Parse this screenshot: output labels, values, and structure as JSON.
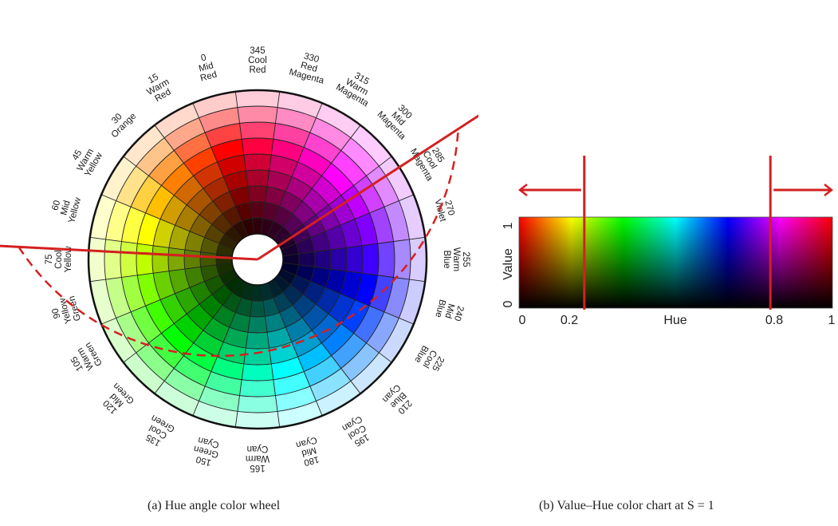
{
  "wheel": {
    "labels": [
      {
        "deg": "0",
        "lines": [
          "0",
          "Mid",
          "Red"
        ]
      },
      {
        "deg": "15",
        "lines": [
          "15",
          "Warm",
          "Red"
        ]
      },
      {
        "deg": "30",
        "lines": [
          "30",
          "Orange"
        ]
      },
      {
        "deg": "45",
        "lines": [
          "45",
          "Warm",
          "Yellow"
        ]
      },
      {
        "deg": "60",
        "lines": [
          "60",
          "Mid",
          "Yellow"
        ]
      },
      {
        "deg": "75",
        "lines": [
          "75",
          "Cool",
          "Yellow"
        ]
      },
      {
        "deg": "90",
        "lines": [
          "90",
          "Yellow",
          "Green"
        ]
      },
      {
        "deg": "105",
        "lines": [
          "105",
          "Warm",
          "Green"
        ]
      },
      {
        "deg": "120",
        "lines": [
          "120",
          "Mid",
          "Green"
        ]
      },
      {
        "deg": "135",
        "lines": [
          "135",
          "Cool",
          "Green"
        ]
      },
      {
        "deg": "150",
        "lines": [
          "150",
          "Green",
          "Cyan"
        ]
      },
      {
        "deg": "165",
        "lines": [
          "165",
          "Warm",
          "Cyan"
        ]
      },
      {
        "deg": "180",
        "lines": [
          "180",
          "Mid",
          "Cyan"
        ]
      },
      {
        "deg": "195",
        "lines": [
          "195",
          "Cool",
          "Cyan"
        ]
      },
      {
        "deg": "210",
        "lines": [
          "210",
          "Blue",
          "Cyan"
        ]
      },
      {
        "deg": "225",
        "lines": [
          "225",
          "Cool",
          "Blue"
        ]
      },
      {
        "deg": "240",
        "lines": [
          "240",
          "Mid",
          "Blue"
        ]
      },
      {
        "deg": "255",
        "lines": [
          "255",
          "Warm",
          "Blue"
        ]
      },
      {
        "deg": "270",
        "lines": [
          "270",
          "Violet"
        ]
      },
      {
        "deg": "285",
        "lines": [
          "285",
          "Cool",
          "Magenta"
        ]
      },
      {
        "deg": "300",
        "lines": [
          "300",
          "Mid",
          "Magenta"
        ]
      },
      {
        "deg": "315",
        "lines": [
          "315",
          "Warm",
          "Magenta"
        ]
      },
      {
        "deg": "330",
        "lines": [
          "330",
          "Red",
          "Magenta"
        ]
      },
      {
        "deg": "345",
        "lines": [
          "345",
          "Cool",
          "Red"
        ]
      }
    ],
    "selection_line_hues": [
      72,
      288
    ],
    "accent_color": "#d42020"
  },
  "chart": {
    "y_axis_label": "Value",
    "x_axis_label": "Hue",
    "y_ticks": [
      "0",
      "1"
    ],
    "x_ticks": [
      "0",
      "0.2",
      "0.8",
      "1"
    ],
    "cutoffs": [
      0.2,
      0.8
    ],
    "accent_color": "#d42020"
  },
  "captions": {
    "a": "(a) Hue angle color wheel",
    "b": "(b) Value–Hue color chart at S = 1"
  }
}
